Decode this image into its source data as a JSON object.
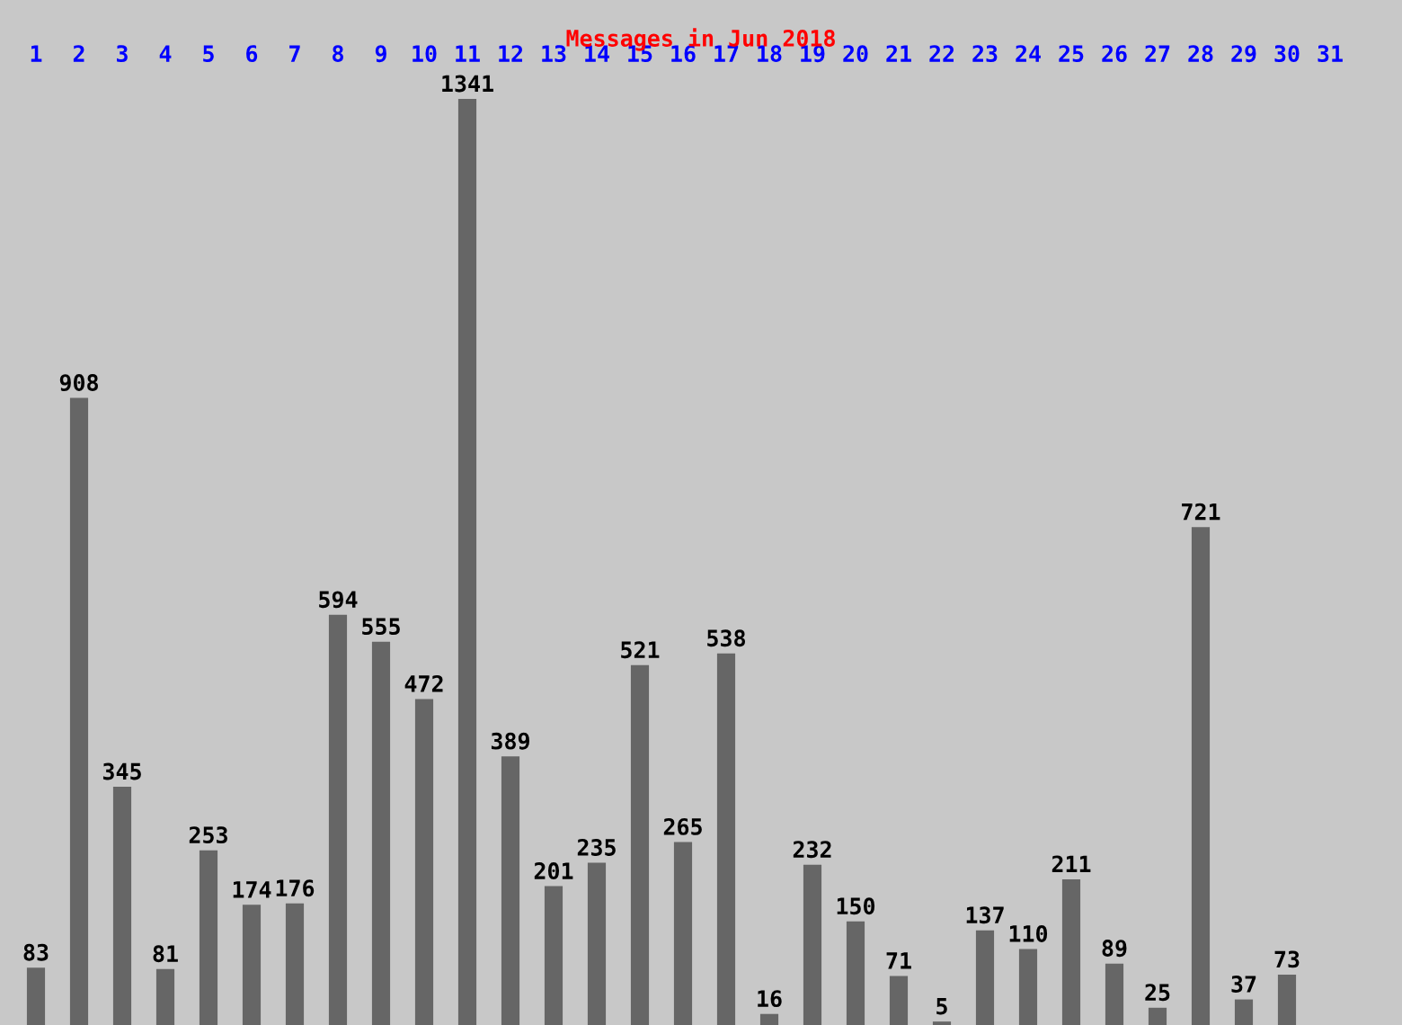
{
  "chart_data": {
    "type": "bar",
    "title": "Messages in Jun 2018",
    "categories": [
      "1",
      "2",
      "3",
      "4",
      "5",
      "6",
      "7",
      "8",
      "9",
      "10",
      "11",
      "12",
      "13",
      "14",
      "15",
      "16",
      "17",
      "18",
      "19",
      "20",
      "21",
      "22",
      "23",
      "24",
      "25",
      "26",
      "27",
      "28",
      "29",
      "30",
      "31"
    ],
    "values": [
      83,
      908,
      345,
      81,
      253,
      174,
      176,
      594,
      555,
      472,
      1341,
      389,
      201,
      235,
      521,
      265,
      538,
      16,
      232,
      150,
      71,
      5,
      137,
      110,
      211,
      89,
      25,
      721,
      37,
      73,
      null
    ],
    "color": "#666666",
    "data_labels": true,
    "tick_labels": "x",
    "grid": false,
    "legend": false
  }
}
